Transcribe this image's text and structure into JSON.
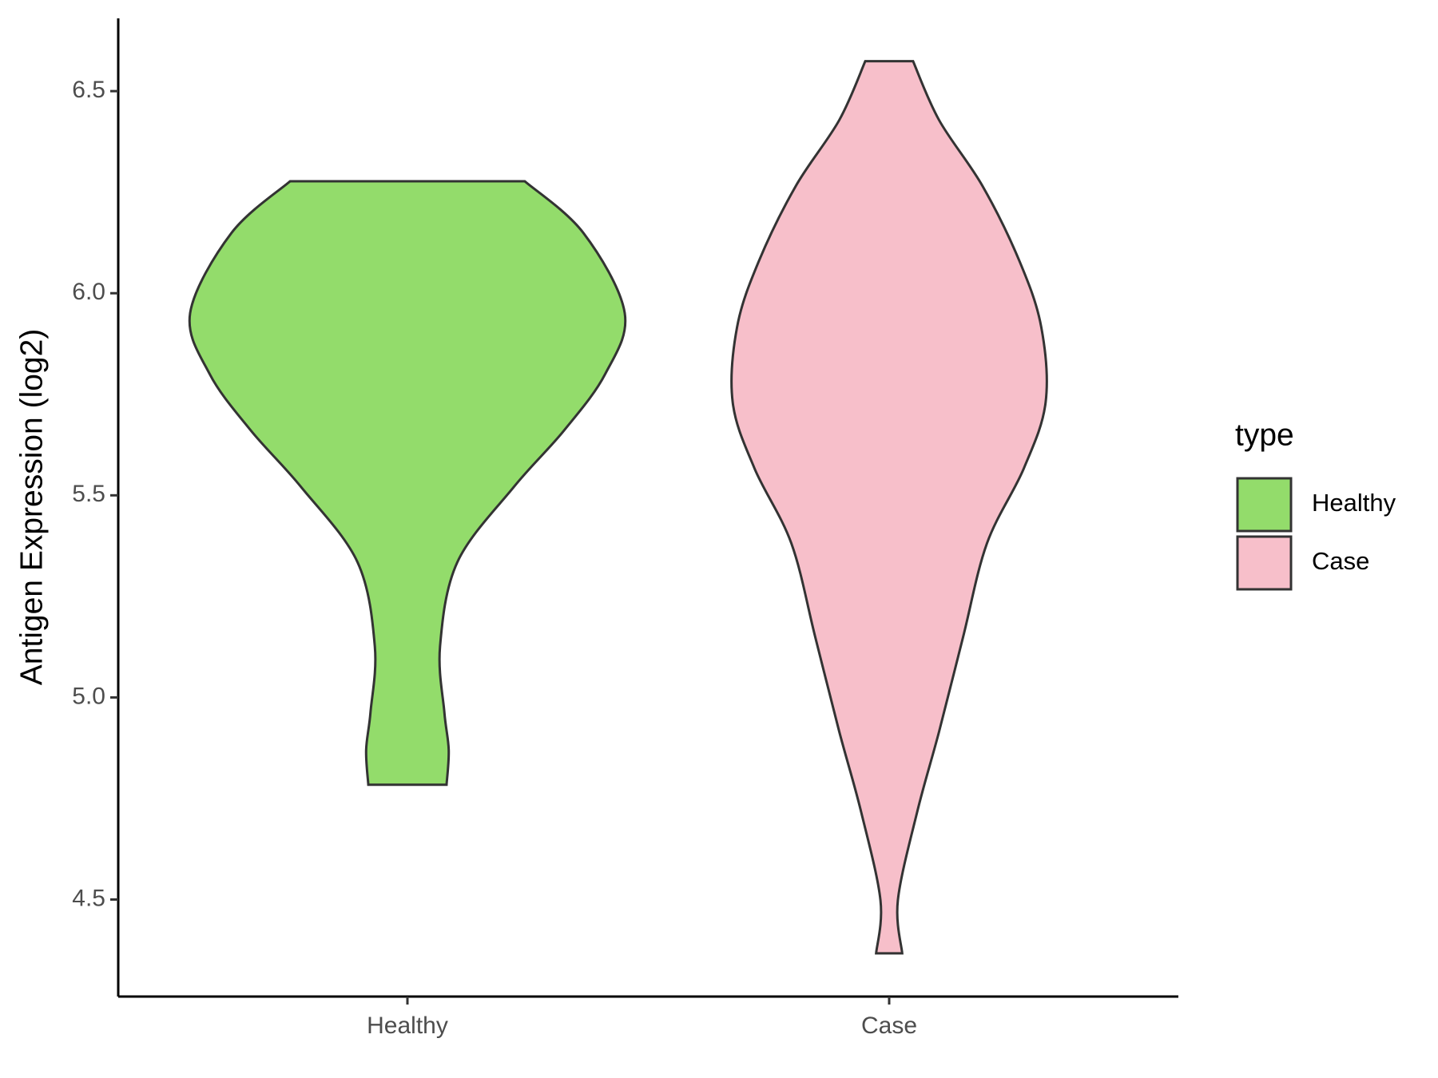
{
  "chart_data": {
    "type": "violin",
    "ylabel": "Antigen Expression (log2)",
    "categories": [
      "Healthy",
      "Case"
    ],
    "ylim": [
      4.26,
      6.68
    ],
    "yticks": [
      4.5,
      {
        "value": 5,
        "label": "5.0"
      },
      5.5,
      {
        "value": 6,
        "label": "6.0"
      },
      6.5
    ],
    "legend_title": "type",
    "legend_position": "right",
    "series": [
      {
        "name": "Healthy",
        "color": "#93dc6b",
        "y": [
          6.277,
          6.149,
          5.951,
          5.8,
          5.66,
          5.521,
          5.335,
          5.126,
          4.963,
          4.87,
          4.784
        ],
        "density": [
          0.54,
          0.81,
          1.0,
          0.91,
          0.72,
          0.49,
          0.23,
          0.15,
          0.17,
          0.19,
          0.18
        ]
      },
      {
        "name": "Case",
        "color": "#f7bfca",
        "y": [
          6.574,
          6.428,
          6.265,
          6.079,
          5.916,
          5.73,
          5.567,
          5.381,
          5.149,
          4.916,
          4.719,
          4.498,
          4.367
        ],
        "density": [
          0.11,
          0.23,
          0.43,
          0.6,
          0.7,
          0.72,
          0.62,
          0.45,
          0.34,
          0.23,
          0.13,
          0.04,
          0.06
        ]
      }
    ]
  }
}
